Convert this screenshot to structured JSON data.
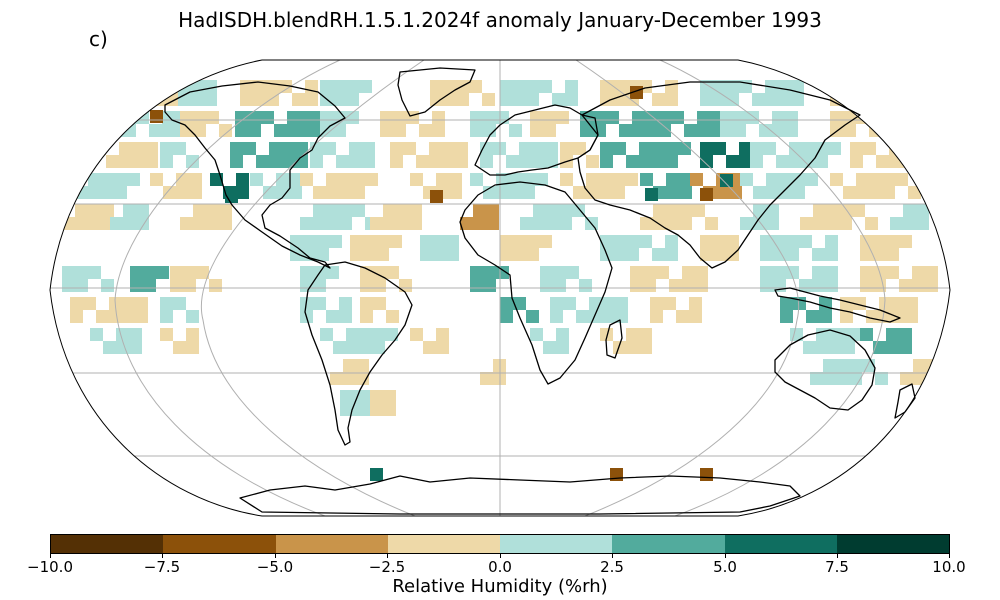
{
  "title": "HadISDH.blendRH.1.5.1.2024f anomaly January-December 1993",
  "panel_label": "c)",
  "colorbar": {
    "label": "Relative Humidity (%rh)",
    "ticks": [
      "−10.0",
      "−7.5",
      "−5.0",
      "−2.5",
      "0.0",
      "2.5",
      "5.0",
      "7.5",
      "10.0"
    ],
    "colors": [
      "#543005",
      "#8c510a",
      "#c9944a",
      "#eed9a8",
      "#b0e0da",
      "#52ab9d",
      "#0f6e60",
      "#003c30"
    ]
  },
  "map": {
    "projection": "Robinson",
    "graticule": true,
    "gridline_color": "#b0b0b0",
    "coastline_color": "#000000"
  }
}
